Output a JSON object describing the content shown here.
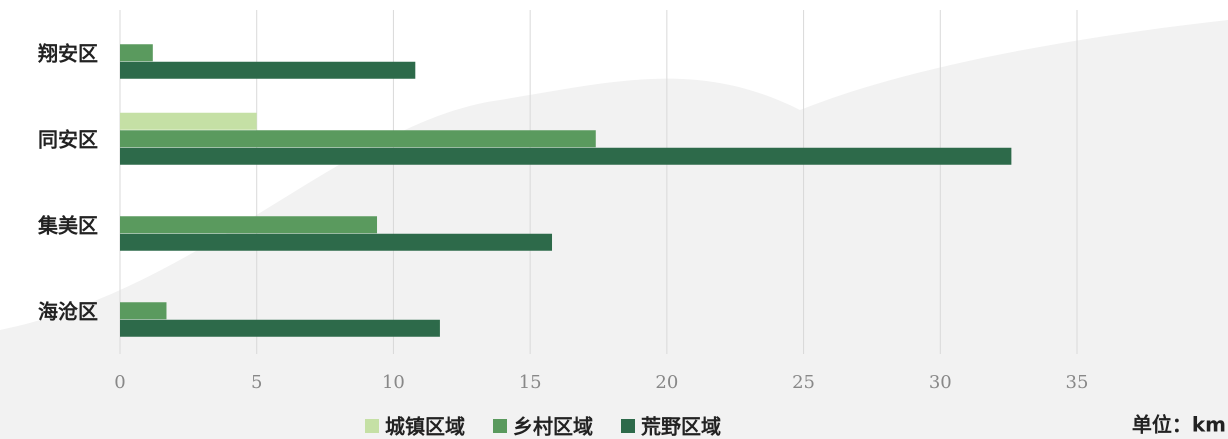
{
  "chart_data": {
    "type": "hbar",
    "categories": [
      "翔安区",
      "同安区",
      "集美区",
      "海沧区"
    ],
    "series": [
      {
        "name": "城镇区域",
        "color": "#c5e0a5",
        "values": [
          null,
          5,
          null,
          null
        ]
      },
      {
        "name": "乡村区域",
        "color": "#5a9a5e",
        "values": [
          1.2,
          17.4,
          9.4,
          1.7
        ]
      },
      {
        "name": "荒野区域",
        "color": "#2d6a4a",
        "values": [
          10.8,
          32.6,
          15.8,
          11.7
        ]
      }
    ],
    "xlim": [
      0,
      35
    ],
    "xticks": [
      0,
      5,
      10,
      15,
      20,
      25,
      30,
      35
    ],
    "grid": true,
    "legend": "bottom",
    "annotation": "单位：km"
  }
}
